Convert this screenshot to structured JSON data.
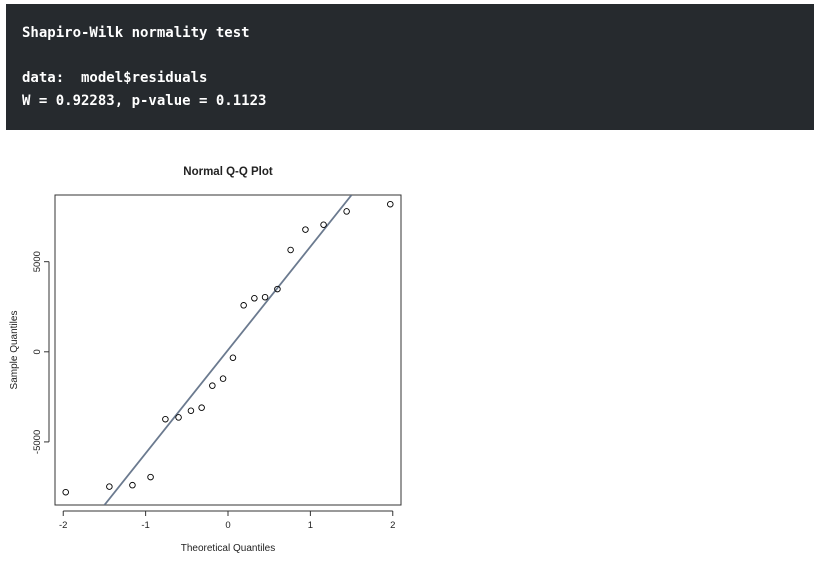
{
  "console": {
    "test_title": "Shapiro-Wilk normality test",
    "data_line": "data:  model$residuals",
    "result_line": "W = 0.92283, p-value = 0.1123"
  },
  "chart_data": {
    "type": "scatter",
    "title": "Normal Q-Q Plot",
    "xlabel": "Theoretical Quantiles",
    "ylabel": "Sample Quantiles",
    "xlim": [
      -2.1,
      2.1
    ],
    "ylim": [
      -8500,
      8700
    ],
    "x_ticks": [
      -2,
      -1,
      0,
      1,
      2
    ],
    "x_tick_labels": [
      "-2",
      "-1",
      "0",
      "1",
      "2"
    ],
    "y_ticks": [
      -5000,
      0,
      5000
    ],
    "y_tick_labels": [
      "-5000",
      "0",
      "5000"
    ],
    "grid": false,
    "point_color": "#000000",
    "line_color": "#6b7a8f",
    "reference_line": {
      "x": [
        -1.5,
        1.5
      ],
      "y": [
        -8500,
        8700
      ]
    },
    "points": [
      {
        "x": -1.97,
        "y": -7790
      },
      {
        "x": -1.44,
        "y": -7480
      },
      {
        "x": -1.16,
        "y": -7400
      },
      {
        "x": -0.94,
        "y": -6950
      },
      {
        "x": -0.76,
        "y": -3740
      },
      {
        "x": -0.6,
        "y": -3640
      },
      {
        "x": -0.45,
        "y": -3270
      },
      {
        "x": -0.32,
        "y": -3100
      },
      {
        "x": -0.19,
        "y": -1880
      },
      {
        "x": -0.06,
        "y": -1490
      },
      {
        "x": 0.06,
        "y": -330
      },
      {
        "x": 0.19,
        "y": 2580
      },
      {
        "x": 0.32,
        "y": 2970
      },
      {
        "x": 0.45,
        "y": 3030
      },
      {
        "x": 0.6,
        "y": 3480
      },
      {
        "x": 0.76,
        "y": 5650
      },
      {
        "x": 0.94,
        "y": 6780
      },
      {
        "x": 1.16,
        "y": 7050
      },
      {
        "x": 1.44,
        "y": 7790
      },
      {
        "x": 1.97,
        "y": 8190
      }
    ]
  }
}
